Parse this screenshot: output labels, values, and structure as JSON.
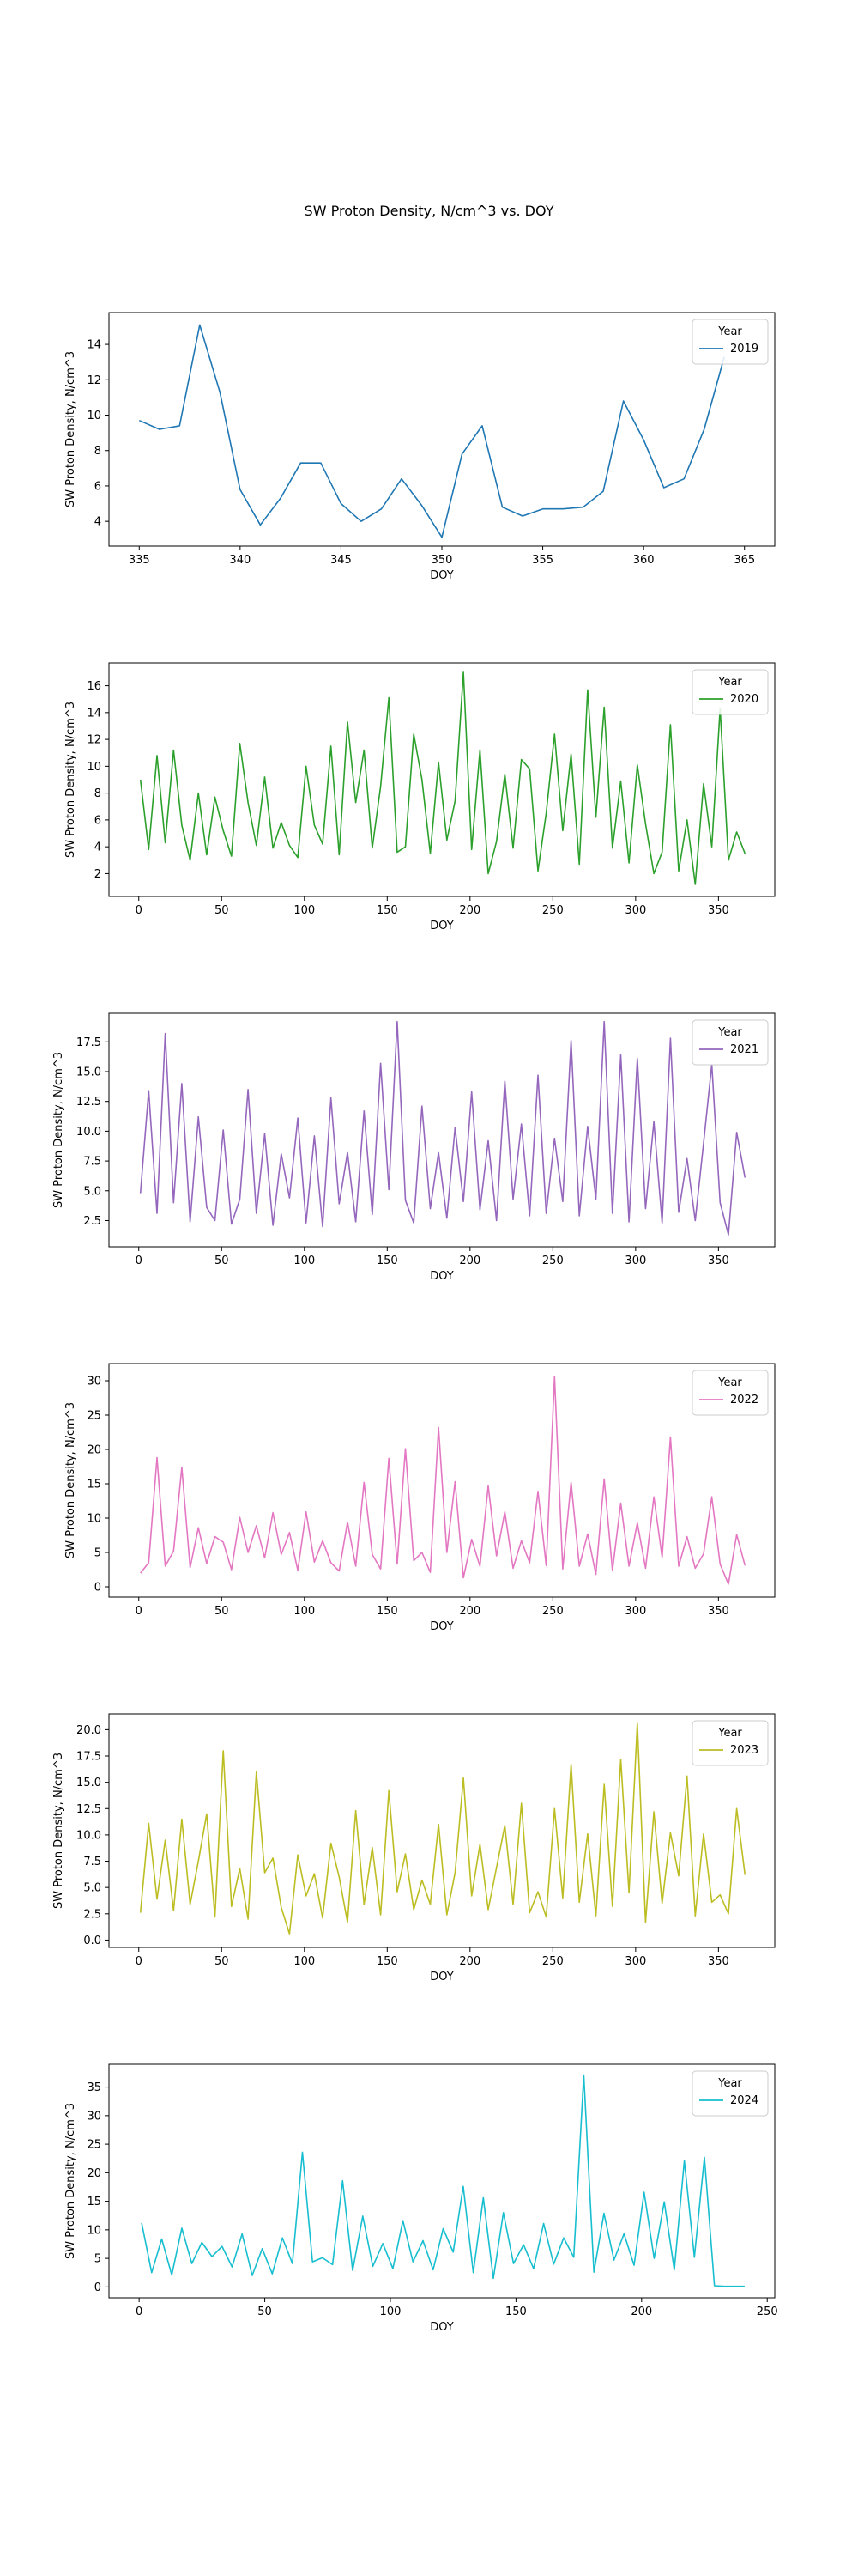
{
  "figure": {
    "title": "SW Proton Density, N/cm^3  vs. DOY",
    "legend_title": "Year"
  },
  "chart_data": [
    {
      "type": "line",
      "xlabel": "DOY",
      "ylabel": "SW Proton Density, N/cm^3",
      "legend_title": "Year",
      "legend_position": "top-right",
      "grid": false,
      "xlim": [
        333.5,
        366.5
      ],
      "ylim": [
        2.6,
        15.8
      ],
      "xticks": [
        335,
        340,
        345,
        350,
        355,
        360,
        365
      ],
      "yticks": [
        4,
        6,
        8,
        10,
        12,
        14
      ],
      "series": [
        {
          "name": "2019",
          "color": "#1f77b4",
          "x": [
            335,
            336,
            337,
            338,
            339,
            340,
            341,
            342,
            343,
            344,
            345,
            346,
            347,
            348,
            349,
            350,
            351,
            352,
            353,
            354,
            355,
            356,
            357,
            358,
            359,
            360,
            361,
            362,
            363,
            364
          ],
          "values": [
            9.7,
            9.2,
            9.4,
            15.1,
            11.3,
            5.8,
            3.8,
            5.3,
            7.3,
            7.3,
            5.0,
            4.0,
            4.7,
            6.4,
            4.9,
            3.1,
            7.8,
            9.4,
            4.8,
            4.3,
            4.7,
            4.7,
            4.8,
            5.7,
            10.8,
            8.6,
            5.9,
            6.4,
            9.2,
            13.3
          ]
        }
      ]
    },
    {
      "type": "line",
      "xlabel": "DOY",
      "ylabel": "SW Proton Density, N/cm^3",
      "legend_title": "Year",
      "legend_position": "top-right",
      "grid": false,
      "xlim": [
        -18,
        384
      ],
      "ylim": [
        0.3,
        17.7
      ],
      "xticks": [
        0,
        50,
        100,
        150,
        200,
        250,
        300,
        350
      ],
      "yticks": [
        2,
        4,
        6,
        8,
        10,
        12,
        14,
        16
      ],
      "series": [
        {
          "name": "2020",
          "color": "#2ca02c",
          "x": [
            1,
            6,
            11,
            16,
            21,
            26,
            31,
            36,
            41,
            46,
            51,
            56,
            61,
            66,
            71,
            76,
            81,
            86,
            91,
            96,
            101,
            106,
            111,
            116,
            121,
            126,
            131,
            136,
            141,
            146,
            151,
            156,
            161,
            166,
            171,
            176,
            181,
            186,
            191,
            196,
            201,
            206,
            211,
            216,
            221,
            226,
            231,
            236,
            241,
            246,
            251,
            256,
            261,
            266,
            271,
            276,
            281,
            286,
            291,
            296,
            301,
            306,
            311,
            316,
            321,
            326,
            331,
            336,
            341,
            346,
            351,
            356,
            361,
            366
          ],
          "values": [
            9.0,
            3.8,
            10.8,
            4.3,
            11.2,
            5.6,
            3.0,
            8.0,
            3.4,
            7.7,
            5.2,
            3.3,
            11.7,
            7.3,
            4.1,
            9.2,
            3.9,
            5.8,
            4.1,
            3.2,
            10.0,
            5.6,
            4.2,
            11.5,
            3.4,
            13.3,
            7.3,
            11.2,
            3.9,
            8.5,
            15.1,
            3.6,
            4.0,
            12.4,
            9.0,
            3.5,
            10.3,
            4.5,
            7.4,
            17.0,
            3.8,
            11.2,
            2.0,
            4.4,
            9.4,
            3.9,
            10.5,
            9.8,
            2.2,
            6.5,
            12.4,
            5.2,
            10.9,
            2.7,
            15.7,
            6.2,
            14.4,
            3.9,
            8.9,
            2.8,
            10.1,
            5.7,
            2.0,
            3.6,
            13.1,
            2.2,
            6.0,
            1.2,
            8.7,
            4.0,
            14.3,
            3.0,
            5.1,
            3.5
          ]
        }
      ]
    },
    {
      "type": "line",
      "xlabel": "DOY",
      "ylabel": "SW Proton Density, N/cm^3",
      "legend_title": "Year",
      "legend_position": "top-right",
      "grid": false,
      "xlim": [
        -18,
        384
      ],
      "ylim": [
        0.3,
        19.9
      ],
      "xticks": [
        0,
        50,
        100,
        150,
        200,
        250,
        300,
        350
      ],
      "yticks": [
        2.5,
        5.0,
        7.5,
        10.0,
        12.5,
        15.0,
        17.5
      ],
      "series": [
        {
          "name": "2021",
          "color": "#9467bd",
          "x": [
            1,
            6,
            11,
            16,
            21,
            26,
            31,
            36,
            41,
            46,
            51,
            56,
            61,
            66,
            71,
            76,
            81,
            86,
            91,
            96,
            101,
            106,
            111,
            116,
            121,
            126,
            131,
            136,
            141,
            146,
            151,
            156,
            161,
            166,
            171,
            176,
            181,
            186,
            191,
            196,
            201,
            206,
            211,
            216,
            221,
            226,
            231,
            236,
            241,
            246,
            251,
            256,
            261,
            266,
            271,
            276,
            281,
            286,
            291,
            296,
            301,
            306,
            311,
            316,
            321,
            326,
            331,
            336,
            341,
            346,
            351,
            356,
            361,
            366
          ],
          "values": [
            4.8,
            13.4,
            3.1,
            18.2,
            4.0,
            14.0,
            2.4,
            11.2,
            3.6,
            2.5,
            10.1,
            2.2,
            4.3,
            13.5,
            3.1,
            9.8,
            2.1,
            8.1,
            4.4,
            11.1,
            2.3,
            9.6,
            2.0,
            12.8,
            3.9,
            8.2,
            2.4,
            11.7,
            3.0,
            15.7,
            5.1,
            19.2,
            4.2,
            2.3,
            12.1,
            3.5,
            8.2,
            2.7,
            10.3,
            4.1,
            13.3,
            3.4,
            9.2,
            2.5,
            14.2,
            4.3,
            10.6,
            2.9,
            14.7,
            3.1,
            9.4,
            4.1,
            17.6,
            2.9,
            10.4,
            4.3,
            19.2,
            3.1,
            16.4,
            2.4,
            16.1,
            3.5,
            10.8,
            2.3,
            17.8,
            3.2,
            7.7,
            2.5,
            9.0,
            15.6,
            4.0,
            1.3,
            9.9,
            6.1
          ]
        }
      ]
    },
    {
      "type": "line",
      "xlabel": "DOY",
      "ylabel": "SW Proton Density, N/cm^3",
      "legend_title": "Year",
      "legend_position": "top-right",
      "grid": false,
      "xlim": [
        -18,
        384
      ],
      "ylim": [
        -1.5,
        32.5
      ],
      "xticks": [
        0,
        50,
        100,
        150,
        200,
        250,
        300,
        350
      ],
      "yticks": [
        0,
        5,
        10,
        15,
        20,
        25,
        30
      ],
      "series": [
        {
          "name": "2022",
          "color": "#e377c2",
          "x": [
            1,
            6,
            11,
            16,
            21,
            26,
            31,
            36,
            41,
            46,
            51,
            56,
            61,
            66,
            71,
            76,
            81,
            86,
            91,
            96,
            101,
            106,
            111,
            116,
            121,
            126,
            131,
            136,
            141,
            146,
            151,
            156,
            161,
            166,
            171,
            176,
            181,
            186,
            191,
            196,
            201,
            206,
            211,
            216,
            221,
            226,
            231,
            236,
            241,
            246,
            251,
            256,
            261,
            266,
            271,
            276,
            281,
            286,
            291,
            296,
            301,
            306,
            311,
            316,
            321,
            326,
            331,
            336,
            341,
            346,
            351,
            356,
            361,
            366
          ],
          "values": [
            2.0,
            3.5,
            18.8,
            3.0,
            5.2,
            17.4,
            2.8,
            8.6,
            3.4,
            7.3,
            6.5,
            2.5,
            10.1,
            5.0,
            8.9,
            4.2,
            10.8,
            4.7,
            7.9,
            2.4,
            10.9,
            3.6,
            6.7,
            3.5,
            2.3,
            9.4,
            3.0,
            15.2,
            4.7,
            2.6,
            18.7,
            3.3,
            20.1,
            3.8,
            5.0,
            2.1,
            23.2,
            5.0,
            15.3,
            1.3,
            6.9,
            3.0,
            14.7,
            4.5,
            10.9,
            2.7,
            6.7,
            3.5,
            13.9,
            3.1,
            30.6,
            2.6,
            15.2,
            3.0,
            7.7,
            1.8,
            15.7,
            2.4,
            12.2,
            3.0,
            9.3,
            2.7,
            13.1,
            4.3,
            21.8,
            3.0,
            7.3,
            2.7,
            4.8,
            13.1,
            3.3,
            0.4,
            7.6,
            3.1
          ]
        }
      ]
    },
    {
      "type": "line",
      "xlabel": "DOY",
      "ylabel": "SW Proton Density, N/cm^3",
      "legend_title": "Year",
      "legend_position": "top-right",
      "grid": false,
      "xlim": [
        -18,
        384
      ],
      "ylim": [
        -0.7,
        21.5
      ],
      "xticks": [
        0,
        50,
        100,
        150,
        200,
        250,
        300,
        350
      ],
      "yticks": [
        0.0,
        2.5,
        5.0,
        7.5,
        10.0,
        12.5,
        15.0,
        17.5,
        20.0
      ],
      "series": [
        {
          "name": "2023",
          "color": "#bcbd22",
          "x": [
            1,
            6,
            11,
            16,
            21,
            26,
            31,
            36,
            41,
            46,
            51,
            56,
            61,
            66,
            71,
            76,
            81,
            86,
            91,
            96,
            101,
            106,
            111,
            116,
            121,
            126,
            131,
            136,
            141,
            146,
            151,
            156,
            161,
            166,
            171,
            176,
            181,
            186,
            191,
            196,
            201,
            206,
            211,
            216,
            221,
            226,
            231,
            236,
            241,
            246,
            251,
            256,
            261,
            266,
            271,
            276,
            281,
            286,
            291,
            296,
            301,
            306,
            311,
            316,
            321,
            326,
            331,
            336,
            341,
            346,
            351,
            356,
            361,
            366
          ],
          "values": [
            2.6,
            11.1,
            3.9,
            9.5,
            2.8,
            11.5,
            3.4,
            7.5,
            12.0,
            2.2,
            18.0,
            3.2,
            6.8,
            2.0,
            16.0,
            6.4,
            7.8,
            3.1,
            0.6,
            8.1,
            4.2,
            6.3,
            2.1,
            9.2,
            6.0,
            1.7,
            12.3,
            3.4,
            8.8,
            2.4,
            14.2,
            4.6,
            8.2,
            2.9,
            5.7,
            3.4,
            11.0,
            2.4,
            6.4,
            15.4,
            4.2,
            9.1,
            2.9,
            6.9,
            10.9,
            3.4,
            13.0,
            2.6,
            4.6,
            2.2,
            12.5,
            4.0,
            16.7,
            3.6,
            10.1,
            2.3,
            14.8,
            3.2,
            17.2,
            4.5,
            20.6,
            1.7,
            12.2,
            3.5,
            10.2,
            6.1,
            15.6,
            2.3,
            10.1,
            3.6,
            4.3,
            2.5,
            12.5,
            6.2
          ]
        }
      ]
    },
    {
      "type": "line",
      "xlabel": "DOY",
      "ylabel": "SW Proton Density, N/cm^3",
      "legend_title": "Year",
      "legend_position": "top-right",
      "grid": false,
      "xlim": [
        -12,
        253
      ],
      "ylim": [
        -1.9,
        39.0
      ],
      "xticks": [
        0,
        50,
        100,
        150,
        200,
        250
      ],
      "yticks": [
        0,
        5,
        10,
        15,
        20,
        25,
        30,
        35
      ],
      "series": [
        {
          "name": "2024",
          "color": "#17becf",
          "x": [
            1,
            5,
            9,
            13,
            17,
            21,
            25,
            29,
            33,
            37,
            41,
            45,
            49,
            53,
            57,
            61,
            65,
            69,
            73,
            77,
            81,
            85,
            89,
            93,
            97,
            101,
            105,
            109,
            113,
            117,
            121,
            125,
            129,
            133,
            137,
            141,
            145,
            149,
            153,
            157,
            161,
            165,
            169,
            173,
            177,
            181,
            185,
            189,
            193,
            197,
            201,
            205,
            209,
            213,
            217,
            221,
            225,
            229,
            233,
            237,
            241
          ],
          "values": [
            11.2,
            2.5,
            8.4,
            2.1,
            10.3,
            4.1,
            7.8,
            5.3,
            7.1,
            3.5,
            9.3,
            2.0,
            6.7,
            2.3,
            8.6,
            4.1,
            23.6,
            4.4,
            5.1,
            3.9,
            18.6,
            2.9,
            12.4,
            3.6,
            7.6,
            3.2,
            11.6,
            4.4,
            8.1,
            3.0,
            10.2,
            6.1,
            17.6,
            2.5,
            15.6,
            1.5,
            13.0,
            4.1,
            7.4,
            3.2,
            11.1,
            4.0,
            8.6,
            5.2,
            37.1,
            2.6,
            12.9,
            4.7,
            9.3,
            3.8,
            16.6,
            5.0,
            14.9,
            3.0,
            22.1,
            5.2,
            22.7,
            0.2,
            0.1,
            0.1,
            0.1
          ]
        }
      ]
    }
  ]
}
